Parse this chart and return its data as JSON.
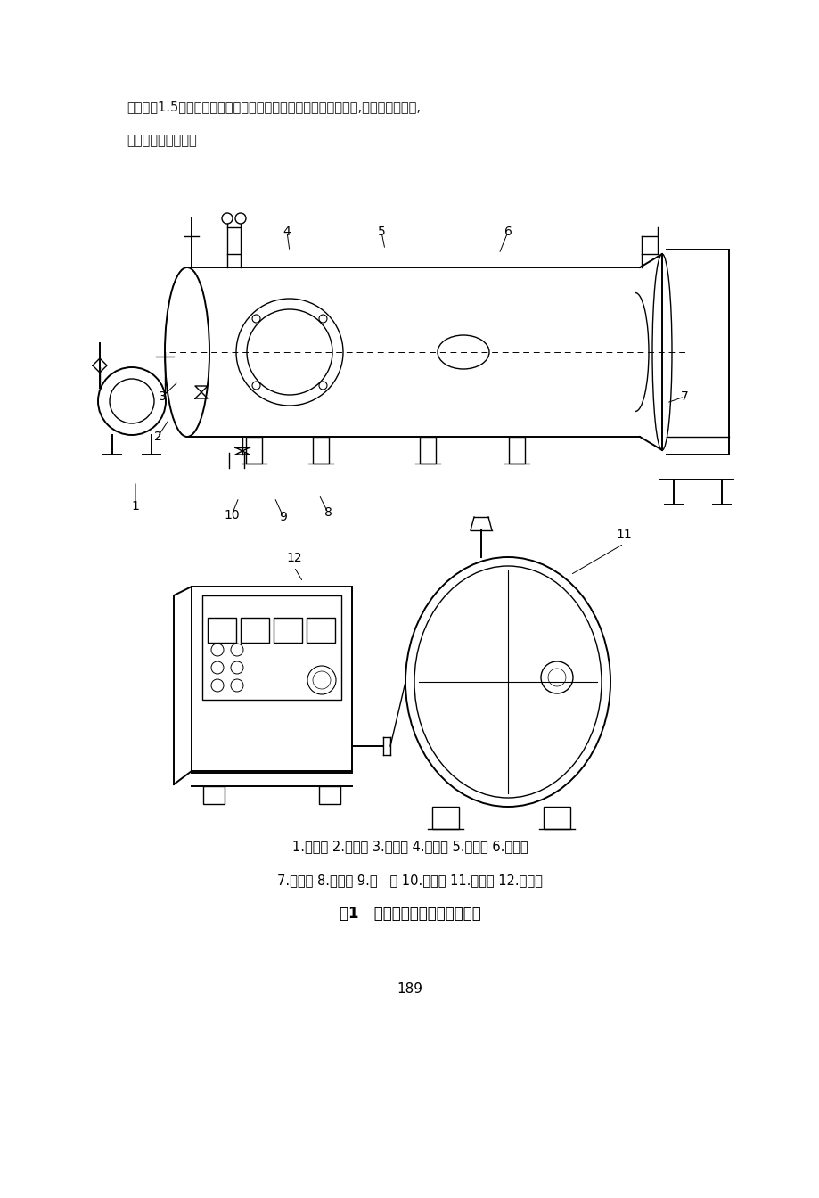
{
  "bg_color": "#ffffff",
  "text_color": "#1a1a1a",
  "intro_line1": "量扩大了1.5倍。高频发生器经改进后内部电子元件的工作可靠性,稳定性得到加强,",
  "intro_line2": "使用寿命明显提高。",
  "caption_line1": "1.真空泵 2.抽气阀 3.进气阀 4.温度表 5.真空表 6.真空罐",
  "caption_line2": "7.外轨道 8.颌线稢 9.手   嬐 10.排水阀 11.观察稢 12.高频机",
  "fig_title": "图1   高频真空干燥机结构示意图",
  "page_number": "189"
}
